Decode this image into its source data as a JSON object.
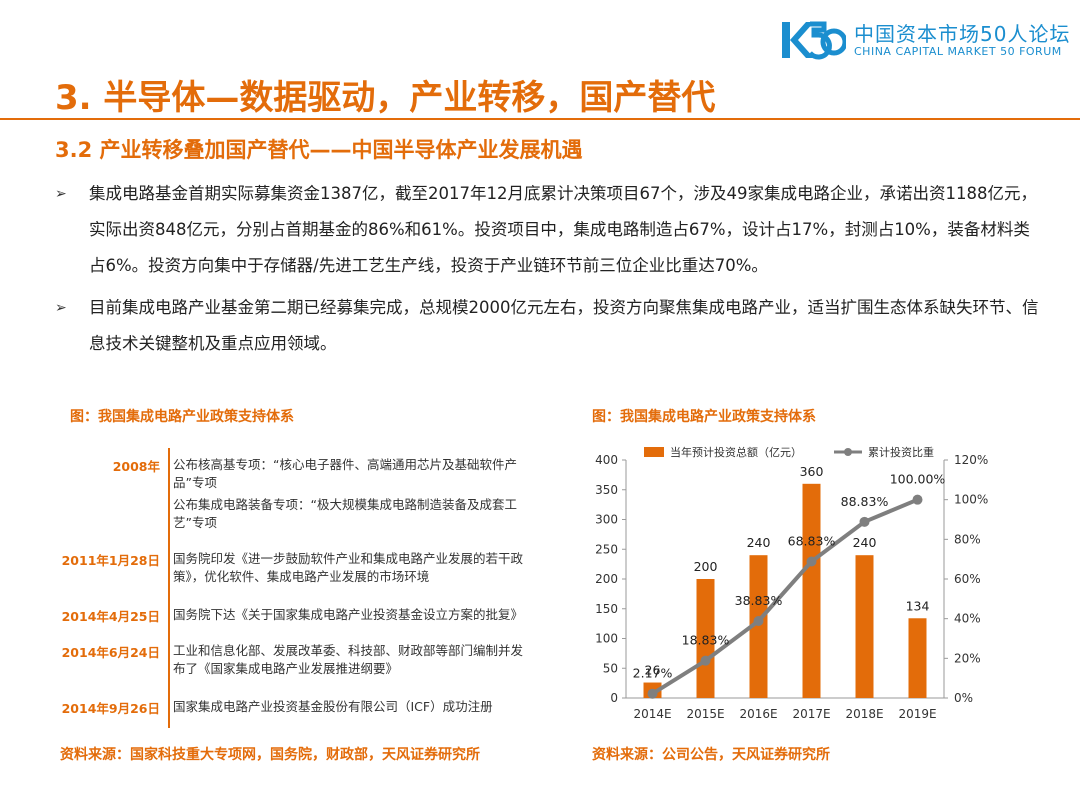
{
  "header": {
    "logo_cn": "中国资本市场50人论坛",
    "logo_en": "CHINA CAPITAL MARKET 50 FORUM",
    "title": "3. 半导体—数据驱动，产业转移，国产替代",
    "subtitle": "3.2 产业转移叠加国产替代——中国半导体产业发展机遇"
  },
  "bullets": [
    "集成电路基金首期实际募集资金1387亿，截至2017年12月底累计决策项目67个，涉及49家集成电路企业，承诺出资1188亿元，实际出资848亿元，分别占首期基金的86%和61%。投资项目中，集成电路制造占67%，设计占17%，封测占10%，装备材料类占6%。投资方向集中于存储器/先进工艺生产线，投资于产业链环节前三位企业比重达70%。",
    "目前集成电路产业基金第二期已经募集完成，总规模2000亿元左右，投资方向聚焦集成电路产业，适当扩围生态体系缺失环节、信息技术关键整机及重点应用领域。"
  ],
  "bullet_mark": "➢",
  "left_figure": {
    "title": "图：我国集成电路产业政策支持体系",
    "source": "资料来源：国家科技重大专项网，国务院，财政部，天风证券研究所",
    "entries": [
      {
        "date": "2008年",
        "text": "公布核高基专项：“核心电子器件、高端通用芯片及基础软件产品”专项"
      },
      {
        "date": "",
        "text": "公布集成电路装备专项：“极大规模集成电路制造装备及成套工艺”专项"
      },
      {
        "date": "2011年1月28日",
        "text": "国务院印发《进一步鼓励软件产业和集成电路产业发展的若干政策》，优化软件、集成电路产业发展的市场环境"
      },
      {
        "date": "2014年4月25日",
        "text": "国务院下达《关于国家集成电路产业投资基金设立方案的批复》"
      },
      {
        "date": "2014年6月24日",
        "text": "工业和信息化部、发展改革委、科技部、财政部等部门编制并发布了《国家集成电路产业发展推进纲要》"
      },
      {
        "date": "2014年9月26日",
        "text": "国家集成电路产业投资基金股份有限公司（ICF）成功注册"
      }
    ]
  },
  "right_figure": {
    "title": "图：我国集成电路产业政策支持体系",
    "source": "资料来源：公司公告，天风证券研究所"
  },
  "colors": {
    "accent": "#e36c0a",
    "bar": "#e36c0a",
    "line": "#7f7f7f",
    "logo": "#1b8ecf"
  },
  "chart_data": {
    "type": "bar",
    "categories": [
      "2014E",
      "2015E",
      "2016E",
      "2017E",
      "2018E",
      "2019E"
    ],
    "series": [
      {
        "name": "当年预计投资总额（亿元）",
        "type": "bar",
        "axis": "left",
        "values": [
          26,
          200,
          240,
          360,
          240,
          134
        ],
        "labels": [
          "26",
          "200",
          "240",
          "360",
          "240",
          "134"
        ]
      },
      {
        "name": "累计投资比重",
        "type": "line",
        "axis": "right",
        "values": [
          2.17,
          18.83,
          38.83,
          68.83,
          88.83,
          100
        ],
        "labels": [
          "2.17%",
          "18.83%",
          "38.83%",
          "68.83%",
          "88.83%",
          "100.00%"
        ]
      }
    ],
    "ylim": [
      0,
      400
    ],
    "y_ticks": [
      "0",
      "50",
      "100",
      "150",
      "200",
      "250",
      "300",
      "350",
      "400"
    ],
    "y2lim": [
      0,
      120
    ],
    "y2_ticks": [
      "0%",
      "20%",
      "40%",
      "60%",
      "80%",
      "100%",
      "120%"
    ],
    "legend": "top",
    "grid": false
  }
}
